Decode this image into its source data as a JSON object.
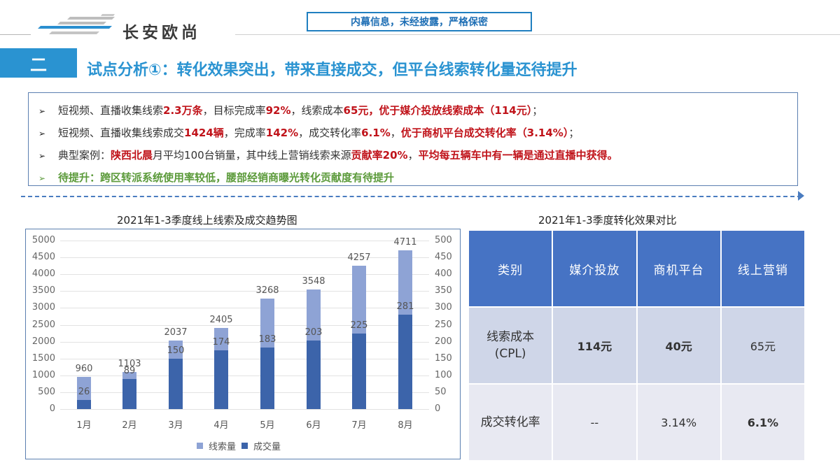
{
  "header": {
    "logo_text": "长安欧尚",
    "confidential_notice": "内幕信息，未经披露，严格保密"
  },
  "title": {
    "section_number": "二",
    "text": "试点分析①：转化效果突出，带来直接成交，但平台线索转化量还待提升"
  },
  "bullets": [
    {
      "style": "normal",
      "segments": [
        {
          "t": "短视频、直播收集线索",
          "hl": false
        },
        {
          "t": "2.3万条",
          "hl": true
        },
        {
          "t": "，目标完成率",
          "hl": false
        },
        {
          "t": "92%",
          "hl": true
        },
        {
          "t": "，线索成本",
          "hl": false
        },
        {
          "t": "65元，优于媒介投放线索成本（114元）",
          "hl": true
        },
        {
          "t": "；",
          "hl": false
        }
      ]
    },
    {
      "style": "normal",
      "segments": [
        {
          "t": "短视频、直播收集线索成交",
          "hl": false
        },
        {
          "t": "1424辆",
          "hl": true
        },
        {
          "t": "，完成率",
          "hl": false
        },
        {
          "t": "142%",
          "hl": true
        },
        {
          "t": "，成交转化率",
          "hl": false
        },
        {
          "t": "6.1%",
          "hl": true
        },
        {
          "t": "，",
          "hl": false
        },
        {
          "t": "优于商机平台成交转化率（3.14%）",
          "hl": true
        },
        {
          "t": "；",
          "hl": false
        }
      ]
    },
    {
      "style": "normal",
      "segments": [
        {
          "t": "典型案例：",
          "hl": false
        },
        {
          "t": "陕西北晨",
          "hl": true
        },
        {
          "t": "月平均100台销量，其中线上营销线索来源",
          "hl": false
        },
        {
          "t": "贡献率20%",
          "hl": true
        },
        {
          "t": "，",
          "hl": false
        },
        {
          "t": "平均每五辆车中有一辆是通过直播中获得。",
          "hl": true
        }
      ]
    },
    {
      "style": "green",
      "segments": [
        {
          "t": "待提升：跨区转派系统使用率较低，腰部经销商曝光转化贡献度有待提升",
          "hl": false
        }
      ]
    }
  ],
  "left_section": {
    "title": "2021年1-3季度线上线索及成交趋势图"
  },
  "right_section": {
    "title": "2021年1-3季度转化效果对比"
  },
  "chart_data": {
    "type": "bar",
    "title": "2021年1-3季度线上线索及成交趋势图",
    "categories": [
      "1月",
      "2月",
      "3月",
      "4月",
      "5月",
      "6月",
      "7月",
      "8月"
    ],
    "series": [
      {
        "name": "线索量",
        "axis": "left",
        "color": "#8ea3d5",
        "values": [
          960,
          1103,
          2037,
          2405,
          3268,
          3548,
          4257,
          4711
        ]
      },
      {
        "name": "成交量",
        "axis": "right",
        "color": "#3c64aa",
        "values": [
          26,
          89,
          150,
          174,
          183,
          203,
          225,
          281
        ]
      }
    ],
    "y_left": {
      "min": 0,
      "max": 5000,
      "step": 500,
      "ticks": [
        "0",
        "500",
        "1000",
        "1500",
        "2000",
        "2500",
        "3000",
        "3500",
        "4000",
        "4500",
        "5000"
      ]
    },
    "y_right": {
      "min": 0,
      "max": 500,
      "step": 50,
      "ticks": [
        "0",
        "50",
        "100",
        "150",
        "200",
        "250",
        "300",
        "350",
        "400",
        "450",
        "500"
      ]
    },
    "xlabel": "",
    "ylabel": "",
    "grid": true,
    "legend_position": "bottom",
    "legend": [
      "线索量",
      "成交量"
    ]
  },
  "comparison_table": {
    "headers": [
      "类别",
      "媒介投放",
      "商机平台",
      "线上营销"
    ],
    "rows": [
      {
        "label_line1": "线索成本",
        "label_line2": "(CPL)",
        "cells": [
          {
            "v": "114元",
            "red": true
          },
          {
            "v": "40元",
            "red": true
          },
          {
            "v": "65元",
            "red": false
          }
        ]
      },
      {
        "label_line1": "成交转化率",
        "label_line2": "",
        "cells": [
          {
            "v": "--",
            "red": false
          },
          {
            "v": "3.14%",
            "red": false
          },
          {
            "v": "6.1%",
            "red": true
          }
        ]
      }
    ]
  },
  "colors": {
    "accent_blue": "#2a93d1",
    "highlight_red": "#c0131a",
    "highlight_green": "#5b9a3a",
    "table_header": "#4673c4",
    "leads_bar": "#8ea3d5",
    "deals_bar": "#3c64aa"
  }
}
